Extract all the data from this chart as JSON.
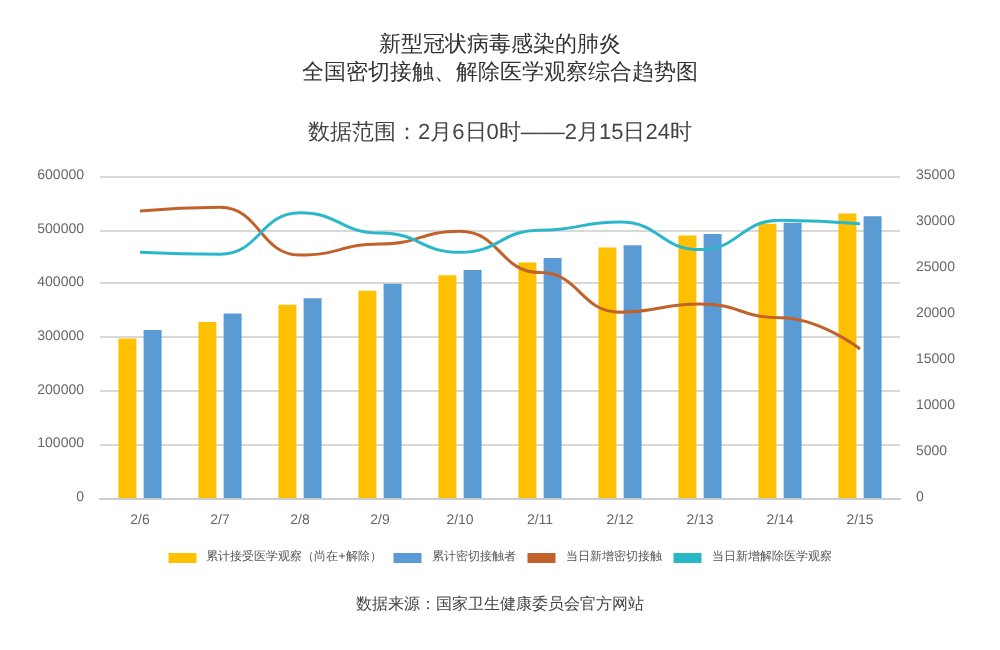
{
  "chart_data": {
    "type": "bar",
    "title": "新型冠状病毒感染的肺炎",
    "subtitle": "全国密切接触、解除医学观察综合趋势图",
    "categories": [
      "2/6",
      "2/7",
      "2/8",
      "2/9",
      "2/10",
      "2/11",
      "2/12",
      "2/13",
      "2/14",
      "2/15"
    ],
    "series": [
      {
        "name": "累计接受医学观察（尚在+解除）",
        "color": "#ffc000",
        "values": [
          297000,
          328000,
          360000,
          386000,
          415000,
          439000,
          467000,
          489000,
          511000,
          530000
        ]
      },
      {
        "name": "累计密切接触者",
        "color": "#5b9bd5",
        "values": [
          313000,
          344000,
          372000,
          399000,
          425000,
          447000,
          471000,
          492000,
          513000,
          525000
        ]
      },
      {
        "name": "当日新增密切接触",
        "type": "line",
        "axis": "y2",
        "color": "#c0622a",
        "values": [
          31200,
          31600,
          26400,
          27600,
          29000,
          24500,
          20200,
          21100,
          19600,
          16200
        ]
      },
      {
        "name": "当日新增解除医学观察",
        "type": "line",
        "axis": "y2",
        "color": "#2ab7ca",
        "values": [
          26700,
          26500,
          31000,
          28800,
          26700,
          29100,
          30000,
          27000,
          30200,
          29800
        ]
      }
    ],
    "ylim": [
      0,
      600000
    ],
    "yticks": [
      0,
      100000,
      200000,
      300000,
      400000,
      500000,
      600000
    ],
    "y2lim": [
      0,
      35000
    ],
    "y2ticks": [
      0,
      5000,
      10000,
      15000,
      20000,
      25000,
      30000,
      35000
    ],
    "grid": "y",
    "legend": "bottom",
    "marker": "none",
    "annotations": [
      "数据范围：2月6日0时——2月15日24时",
      "数据来源：国家卫生健康委员会官方网站"
    ]
  }
}
